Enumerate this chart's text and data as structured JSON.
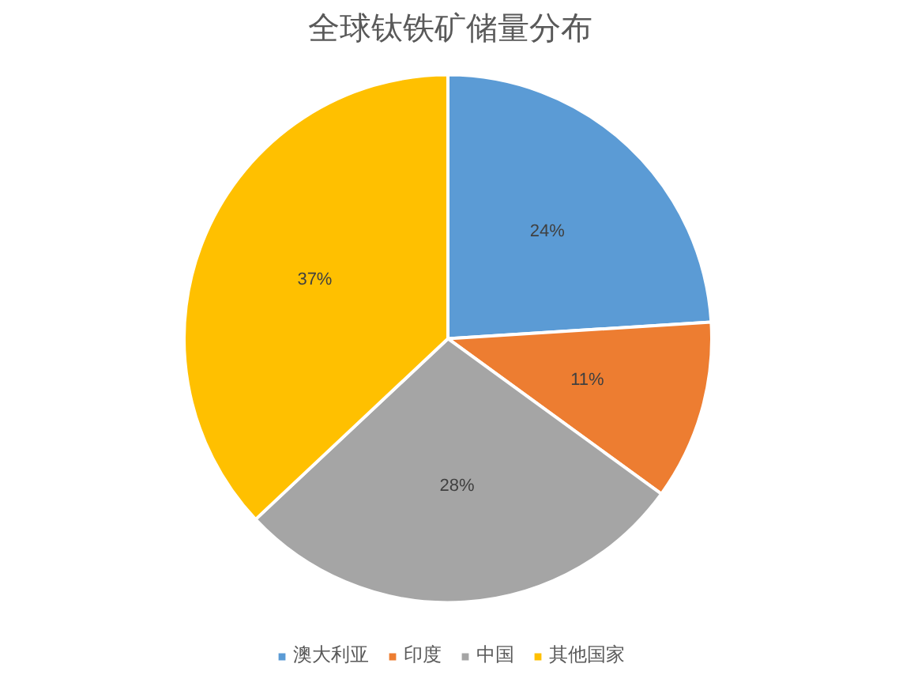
{
  "chart_data": {
    "type": "pie",
    "title": "全球钛铁矿储量分布",
    "categories": [
      "澳大利亚",
      "印度",
      "中国",
      "其他国家"
    ],
    "values": [
      24,
      11,
      28,
      37
    ],
    "colors": [
      "#5b9bd5",
      "#ed7d31",
      "#a5a5a5",
      "#ffc000"
    ],
    "value_labels": [
      "24%",
      "11%",
      "28%",
      "37%"
    ],
    "legend": "bottom"
  }
}
